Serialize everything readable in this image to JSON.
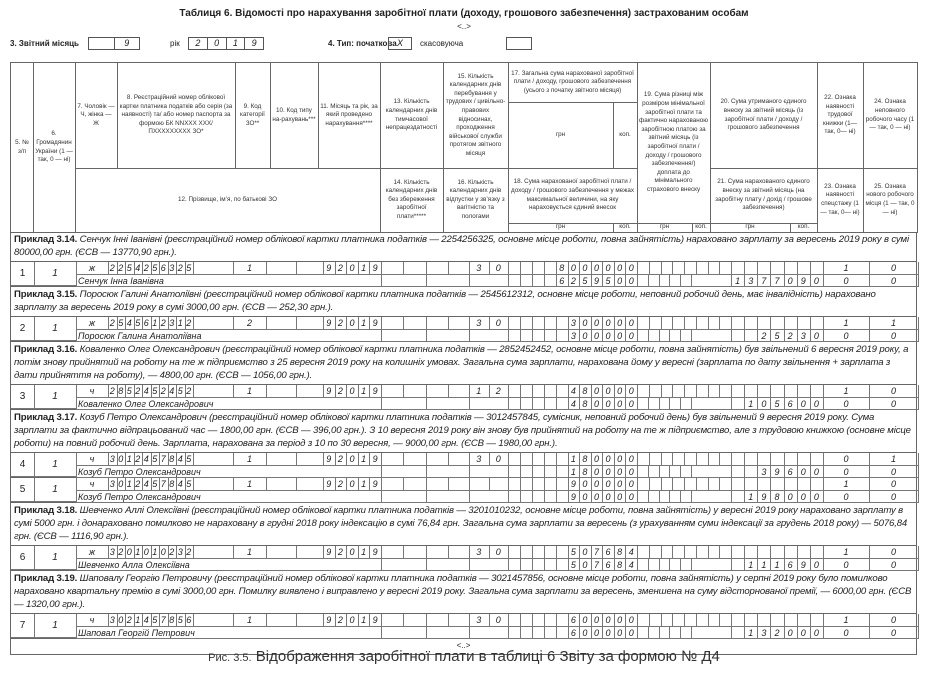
{
  "title": "Таблиця 6. Відомості про нарахування заробітної плати (доходу, грошового забезпечення) застрахованим особам",
  "ellipsis": "<..>",
  "report": {
    "month_label": "3. Звітний місяць",
    "month_boxes": [
      "",
      "9"
    ],
    "year_label": "рік",
    "year_boxes": [
      "2",
      "0",
      "1",
      "9"
    ],
    "type_label": "4. Тип: початкова",
    "type_initial": "X",
    "type_cancel_label": "скасовуюча",
    "type_cancel": ""
  },
  "header": {
    "c5": "5. № з/п",
    "c6": "6. Громадянин України (1 — так, 0 — ні)",
    "c7": "7. Чоловік — Ч, жінка — Ж",
    "c8": "8. Реєстраційний номер облікової картки платника податків або серія (за наявності) та/ або номер паспорта за формою БК NNXXX XXX/ПXXXXXXXXX ЗО*",
    "c9": "9. Код категорії ЗО**",
    "c10": "10. Код типу на-рахувань***",
    "c11": "11. Місяць та рік, за який проведено нарахування****",
    "c13": "13. Кількість календарних днів тимчасової непрацездатності",
    "c15": "15. Кількість календарних днів перебування у трудових / цивільно-правових відносинах, проходження військової служби протягом звітного місяця",
    "c17": "17. Загальна сума нарахованої заробітної плати / доходу, грошового забезпечення (усього з початку звітного місяця)",
    "c19": "19. Сума різниці між розміром мінімальної заробітної плати та фактично нарахованою заробітною платою за звітний місяць (із заробітної плати / доходу / грошового забезпечення/) доплата до мінімального страхового внеску",
    "c20": "20. Сума утриманого єдиного внеску за звітний місяць (із заробітної плати / доходу / грошового забезпечення",
    "c22": "22. Ознака наявності трудової книжки (1— так, 0— ні)",
    "c24": "24. Ознака неповного робочого часу (1 — так, 0 — ні)",
    "c12": "12. Прізвище, ім’я, по батькові ЗО",
    "c14": "14. Кількість календарних днів без збереження заробітної плати*****",
    "c16": "16. Кількість календарних днів відпустки у зв’язку з вагітністю та пологами",
    "c18": "18. Сума нарахованої заробітної плати / доходу / грошового забезпечення у межах максимальної величини, на яку нараховується єдиний внесок",
    "c21": "21. Сума нарахованого єдиного внеску за звітний місяць (на заробітну плату / дохід / грошове забезпечення)",
    "c23": "23. Ознака наявності спецстажу (1 — так, 0— ні)",
    "c25": "25. Ознака нового робочого місця (1 — так, 0 — ні)",
    "grn": "грн",
    "kop": "коп."
  },
  "records": [
    {
      "label": "Приклад 3.14.",
      "text": "Сенчук Інні Іванівні (реєстраційний номер облікової картки платника податків — 2254256325, основне місце роботи, повна зайнятість) нараховано зарплату за вересень 2019 року в сумі 80000,00 грн. (ЄСВ — 13770,90 грн.).",
      "rows": [
        {
          "num": "1",
          "citizen": "1",
          "gender": "ж",
          "reg": "2254256325",
          "category": "1",
          "month_year": "92019",
          "days15": "30",
          "total17": "8000000",
          "sign22": "1",
          "sign24": "0",
          "name": "Сенчук Інна Іванівна",
          "sum18": "6259500",
          "sum21": "1377090",
          "sign23": "0",
          "sign25": "0"
        }
      ]
    },
    {
      "label": "Приклад 3.15.",
      "text": "Поросюк Галині Анатоліївні (реєстраційний номер облікової картки платника податків — 2545612312, основне місце роботи, неповний робочий день, має інвалідність) нараховано зарплату за вересень 2019 року в сумі 3000,00 грн. (ЄСВ — 252,30 грн.).",
      "rows": [
        {
          "num": "2",
          "citizen": "1",
          "gender": "ж",
          "reg": "2545612312",
          "category": "2",
          "month_year": "92019",
          "days15": "30",
          "total17": "300000",
          "sign22": "1",
          "sign24": "1",
          "name": "Поросюк Галина Анатоліївна",
          "sum18": "300000",
          "sum21": "25230",
          "sign23": "0",
          "sign25": "0"
        }
      ]
    },
    {
      "label": "Приклад 3.16.",
      "text": "Коваленко Олег Олександрович (реєстраційний номер облікової картки платника податків — 2852452452, основне місце роботи, повна зайнятість) був звільнений 6 вересня 2019 року, а потім знову прийнятий на роботу на те ж підприємство з 25 вересня 2019 року на колишніх умовах. Загальна сума зарплати, нарахована йому у вересні (зарплата по дату звільнення + зарплата з дати прийняття на роботу), — 4800,00 грн. (ЄСВ — 1056,00 грн.).",
      "rows": [
        {
          "num": "3",
          "citizen": "1",
          "gender": "ч",
          "reg": "2852452452",
          "category": "1",
          "month_year": "92019",
          "days15": "12",
          "total17": "480000",
          "sign22": "1",
          "sign24": "0",
          "name": "Коваленко Олег Олександрович",
          "sum18": "480000",
          "sum21": "105600",
          "sign23": "0",
          "sign25": "0"
        }
      ]
    },
    {
      "label": "Приклад 3.17.",
      "text": "Козуб Петро Олександрович (реєстраційний номер облікової картки платника податків — 3012457845, сумісник, неповний робочий день) був звільнений 9 вересня 2019 року. Сума зарплати за фактично відпрацьований час — 1800,00 грн. (ЄСВ — 396,00 грн.). З 10 вересня 2019 року він знову був прийнятий на роботу на те ж підприємство, але з трудовою книжкою (основне місце роботи) на повний робочий день. Зарплата, нарахована за період з 10 по 30 вересня, — 9000,00 грн. (ЄСВ — 1980,00 грн.).",
      "rows": [
        {
          "num": "4",
          "citizen": "1",
          "gender": "ч",
          "reg": "3012457845",
          "category": "1",
          "month_year": "92019",
          "days15": "30",
          "total17": "180000",
          "sign22": "0",
          "sign24": "1",
          "name": "Козуб Петро Олександрович",
          "sum18": "180000",
          "sum21": "39600",
          "sign23": "0",
          "sign25": "0"
        },
        {
          "num": "5",
          "citizen": "1",
          "gender": "ч",
          "reg": "3012457845",
          "category": "1",
          "month_year": "92019",
          "days15": "",
          "total17": "900000",
          "sign22": "1",
          "sign24": "0",
          "name": "Козуб Петро Олександрович",
          "sum18": "900000",
          "sum21": "198000",
          "sign23": "0",
          "sign25": "0"
        }
      ]
    },
    {
      "label": "Приклад 3.18.",
      "text": "Шевченко Аллі Олексіївні (реєстраційний номер облікової картки платника податків — 3201010232, основне місце роботи, повна зайнятість) у вересні 2019 року нараховано зарплату в сумі 5000 грн. і донараховано помилково не нараховану в грудні 2018 року індексацію в сумі 76,84 грн. Загальна сума зарплати за вересень (з урахуванням суми індексації за грудень 2018 року) — 5076,84 грн. (ЄСВ — 1116,90 грн.).",
      "rows": [
        {
          "num": "6",
          "citizen": "1",
          "gender": "ж",
          "reg": "3201010232",
          "category": "1",
          "month_year": "92019",
          "days15": "30",
          "total17": "507684",
          "sign22": "1",
          "sign24": "0",
          "name": "Шевченко Алла Олексіївна",
          "sum18": "507684",
          "sum21": "111690",
          "sign23": "0",
          "sign25": "0"
        }
      ]
    },
    {
      "label": "Приклад 3.19.",
      "text": "Шаповалу Георгію Петровичу (реєстраційний номер облікової картки платника податків — 3021457856, основне місце роботи, повна зайнятість) у серпні 2019 року було помилково нараховано квартальну премію в сумі 3000,00 грн. Помилку виявлено і виправлено у вересні 2019 року. Загальна сума зарплати за вересень, зменшена на суму відсторнованої премії, — 6000,00 грн. (ЄСВ — 1320,00 грн.).",
      "rows": [
        {
          "num": "7",
          "citizen": "1",
          "gender": "ч",
          "reg": "3021457856",
          "category": "1",
          "month_year": "92019",
          "days15": "30",
          "total17": "600000",
          "sign22": "1",
          "sign24": "0",
          "name": "Шаповал Георгій Петрович",
          "sum18": "600000",
          "sum21": "132000",
          "sign23": "0",
          "sign25": "0"
        }
      ]
    }
  ],
  "caption": {
    "prefix": "Рис. 3.5.",
    "text": "Відображення заробітної плати в таблиці 6 Звіту за формою № Д4"
  }
}
